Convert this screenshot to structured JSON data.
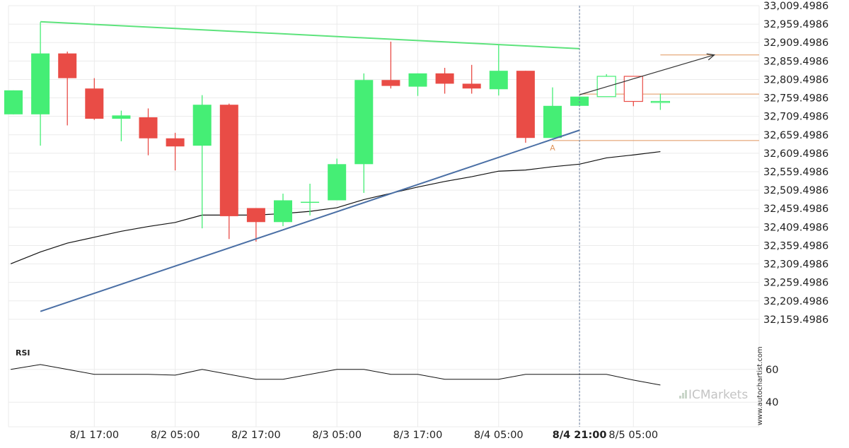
{
  "chart_data": {
    "type": "candlestick",
    "price_axis": {
      "ylim": [
        32109.4986,
        33009.4986
      ],
      "tick_labels": [
        "33,009.4986",
        "32,959.4986",
        "32,909.4986",
        "32,859.4986",
        "32,809.4986",
        "32,759.4986",
        "32,709.4986",
        "32,659.4986",
        "32,609.4986",
        "32,559.4986",
        "32,509.4986",
        "32,459.4986",
        "32,409.4986",
        "32,359.4986",
        "32,309.4986",
        "32,259.4986",
        "32,209.4986",
        "32,159.4986"
      ],
      "tick_values": [
        33009.4986,
        32959.4986,
        32909.4986,
        32859.4986,
        32809.4986,
        32759.4986,
        32709.4986,
        32659.4986,
        32609.4986,
        32559.4986,
        32509.4986,
        32459.4986,
        32409.4986,
        32359.4986,
        32309.4986,
        32259.4986,
        32209.4986,
        32159.4986
      ]
    },
    "x_axis": {
      "tick_labels": [
        "8/1 17:00",
        "8/2 05:00",
        "8/2 17:00",
        "8/3 05:00",
        "8/3 17:00",
        "8/4 05:00",
        "8/4 21:00",
        "8/5 05:00"
      ],
      "tick_index": [
        3,
        6,
        9,
        12,
        15,
        18,
        21,
        23
      ],
      "highlight_label": "8/4 21:00"
    },
    "candles": [
      {
        "i": 0,
        "o": 32715,
        "h": 32780,
        "l": 32715,
        "c": 32780
      },
      {
        "i": 1,
        "o": 32715,
        "h": 32965,
        "l": 32630,
        "c": 32880
      },
      {
        "i": 2,
        "o": 32880,
        "h": 32885,
        "l": 32685,
        "c": 32813
      },
      {
        "i": 3,
        "o": 32785,
        "h": 32813,
        "l": 32700,
        "c": 32703
      },
      {
        "i": 4,
        "o": 32703,
        "h": 32725,
        "l": 32642,
        "c": 32712
      },
      {
        "i": 5,
        "o": 32707,
        "h": 32731,
        "l": 32604,
        "c": 32650
      },
      {
        "i": 6,
        "o": 32650,
        "h": 32665,
        "l": 32563,
        "c": 32628
      },
      {
        "i": 7,
        "o": 32630,
        "h": 32767,
        "l": 32406,
        "c": 32741
      },
      {
        "i": 8,
        "o": 32741,
        "h": 32744,
        "l": 32377,
        "c": 32439
      },
      {
        "i": 9,
        "o": 32461,
        "h": 32461,
        "l": 32370,
        "c": 32423
      },
      {
        "i": 10,
        "o": 32423,
        "h": 32500,
        "l": 32412,
        "c": 32482
      },
      {
        "i": 11,
        "o": 32478,
        "h": 32527,
        "l": 32441,
        "c": 32478
      },
      {
        "i": 12,
        "o": 32482,
        "h": 32595,
        "l": 32482,
        "c": 32580
      },
      {
        "i": 13,
        "o": 32580,
        "h": 32826,
        "l": 32502,
        "c": 32808
      },
      {
        "i": 14,
        "o": 32808,
        "h": 32912,
        "l": 32785,
        "c": 32792
      },
      {
        "i": 15,
        "o": 32790,
        "h": 32826,
        "l": 32765,
        "c": 32826
      },
      {
        "i": 16,
        "o": 32826,
        "h": 32841,
        "l": 32771,
        "c": 32798
      },
      {
        "i": 17,
        "o": 32798,
        "h": 32849,
        "l": 32771,
        "c": 32785
      },
      {
        "i": 18,
        "o": 32783,
        "h": 32903,
        "l": 32766,
        "c": 32833
      },
      {
        "i": 19,
        "o": 32833,
        "h": 32833,
        "l": 32638,
        "c": 32651
      },
      {
        "i": 20,
        "o": 32651,
        "h": 32788,
        "l": 32651,
        "c": 32738
      },
      {
        "i": 21,
        "o": 32738,
        "h": 32763,
        "l": 32738,
        "c": 32763
      },
      {
        "i": 22,
        "o": 32763,
        "h": 32824,
        "l": 32763,
        "c": 32818,
        "hollow": true
      },
      {
        "i": 23,
        "o": 32818,
        "h": 32818,
        "l": 32737,
        "c": 32750,
        "hollow": true
      },
      {
        "i": 24,
        "o": 32750,
        "h": 32771,
        "l": 32727,
        "c": 32750,
        "hollow": true
      }
    ],
    "moving_average": [
      {
        "i": -0.1,
        "v": 32310
      },
      {
        "i": 1,
        "v": 32342
      },
      {
        "i": 2,
        "v": 32366
      },
      {
        "i": 3,
        "v": 32382
      },
      {
        "i": 4,
        "v": 32398
      },
      {
        "i": 5,
        "v": 32411
      },
      {
        "i": 6,
        "v": 32422
      },
      {
        "i": 7,
        "v": 32442
      },
      {
        "i": 8,
        "v": 32442
      },
      {
        "i": 9,
        "v": 32442
      },
      {
        "i": 10,
        "v": 32446
      },
      {
        "i": 11,
        "v": 32452
      },
      {
        "i": 12,
        "v": 32462
      },
      {
        "i": 13,
        "v": 32484
      },
      {
        "i": 14,
        "v": 32501
      },
      {
        "i": 15,
        "v": 32518
      },
      {
        "i": 16,
        "v": 32533
      },
      {
        "i": 17,
        "v": 32546
      },
      {
        "i": 18,
        "v": 32561
      },
      {
        "i": 19,
        "v": 32564
      },
      {
        "i": 20,
        "v": 32573
      },
      {
        "i": 21,
        "v": 32580
      },
      {
        "i": 22,
        "v": 32597
      },
      {
        "i": 23,
        "v": 32605
      },
      {
        "i": 24,
        "v": 32614
      }
    ],
    "resistance_line": {
      "from": {
        "i": 1,
        "v": 32966
      },
      "to": {
        "i": 21,
        "v": 32893
      },
      "color": "#5de37c"
    },
    "support_line": {
      "from": {
        "i": 1,
        "v": 32181
      },
      "to": {
        "i": 21,
        "v": 32672
      },
      "color": "#4a6fa5"
    },
    "projection_arrow": {
      "from": {
        "i": 21,
        "v": 32768
      },
      "to": {
        "i": 26,
        "v": 32876
      },
      "color": "#333333"
    },
    "levels": [
      {
        "v": 32876,
        "from_i": 24,
        "color": "#e0955c"
      },
      {
        "v": 32770,
        "from_i": 21,
        "color": "#e0955c"
      },
      {
        "v": 32644,
        "from_i": 20,
        "color": "#e0955c"
      }
    ],
    "annotation": {
      "text": "A",
      "i": 20,
      "v": 32625,
      "color": "#e0955c"
    },
    "vertical_marker_index": 21,
    "rsi": {
      "title": "RSI",
      "tick_labels": [
        "60",
        "40"
      ],
      "tick_values": [
        60,
        40
      ],
      "ylim": [
        25,
        75
      ],
      "values": [
        {
          "i": -0.1,
          "v": 60
        },
        {
          "i": 1,
          "v": 63
        },
        {
          "i": 2,
          "v": 60
        },
        {
          "i": 3,
          "v": 57
        },
        {
          "i": 4,
          "v": 57
        },
        {
          "i": 5,
          "v": 57
        },
        {
          "i": 6,
          "v": 56.5
        },
        {
          "i": 7,
          "v": 60
        },
        {
          "i": 8,
          "v": 57
        },
        {
          "i": 9,
          "v": 54
        },
        {
          "i": 10,
          "v": 54
        },
        {
          "i": 11,
          "v": 57
        },
        {
          "i": 12,
          "v": 60
        },
        {
          "i": 13,
          "v": 60
        },
        {
          "i": 14,
          "v": 57
        },
        {
          "i": 15,
          "v": 57
        },
        {
          "i": 16,
          "v": 54
        },
        {
          "i": 17,
          "v": 54
        },
        {
          "i": 18,
          "v": 54
        },
        {
          "i": 19,
          "v": 57
        },
        {
          "i": 20,
          "v": 57
        },
        {
          "i": 21,
          "v": 57
        },
        {
          "i": 22,
          "v": 57
        },
        {
          "i": 23,
          "v": 53.5
        },
        {
          "i": 24,
          "v": 50.5
        }
      ]
    },
    "colors": {
      "up": "#45ee75",
      "down": "#e94c46",
      "ma": "#111111",
      "grid": "#ebebeb"
    },
    "watermark": {
      "brand": "ICMarkets",
      "site": "www.autochartist.com"
    }
  }
}
